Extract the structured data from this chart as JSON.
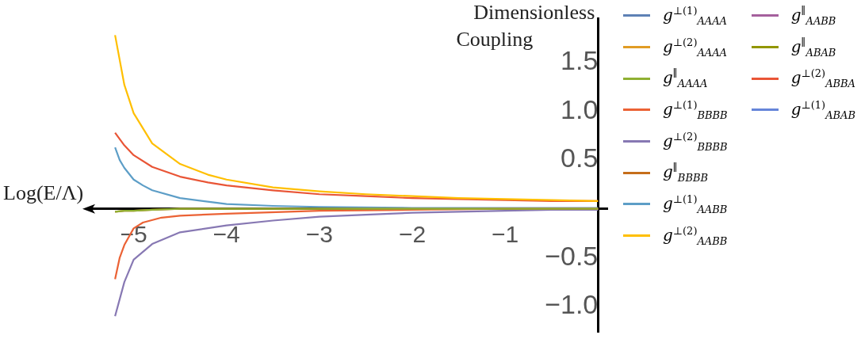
{
  "chart_data": {
    "type": "line",
    "xlabel": "Log(E/Λ)",
    "ylabel": "Dimensionless Coupling",
    "xlim": [
      -5.5,
      0.1
    ],
    "ylim": [
      -1.26,
      1.95
    ],
    "xticks": [
      -5,
      -4,
      -3,
      -2,
      -1
    ],
    "yticks": [
      {
        "value": -1,
        "label": "−1.0"
      },
      -0.5,
      0.5,
      {
        "value": 1,
        "label": "1.0"
      },
      1.5
    ],
    "grid": false,
    "legend": "right",
    "marker": "none",
    "line_style": "solid",
    "series": [
      {
        "name": "g$^{⊥(1)}$$_{AAAA}$",
        "color": "#5e81b5"
      },
      {
        "name": "g$^{⊥(2)}$$_{AAAA}$",
        "color": "#e19c24"
      },
      {
        "name": "g$^{∥}$$_{AAAA}$",
        "color": "#8fb032",
        "x": [
          -5.2,
          -5.1,
          -5,
          -4.8,
          -4.5,
          0
        ],
        "values": [
          -0.03,
          -0.02,
          -0.02,
          -0.01,
          0,
          0
        ]
      },
      {
        "name": "g$^{⊥(1)}$$_{BBBB}$",
        "color": "#eb6235",
        "x": [
          -5.2,
          -5.15,
          -5.1,
          -5,
          -4.9,
          -4.7,
          -4.5,
          -4,
          -3,
          -2,
          -1,
          0
        ],
        "values": [
          -0.72,
          -0.5,
          -0.37,
          -0.2,
          -0.14,
          -0.09,
          -0.07,
          -0.05,
          -0.02,
          -0.01,
          0,
          0
        ]
      },
      {
        "name": "g$^{⊥(2)}$$_{BBBB}$",
        "color": "#8778b3",
        "x": [
          -5.2,
          -5.1,
          -5,
          -4.8,
          -4.5,
          -4,
          -3.5,
          -3,
          -2.5,
          -2,
          -1.5,
          -1,
          -0.5,
          0
        ],
        "values": [
          -1.1,
          -0.75,
          -0.52,
          -0.36,
          -0.24,
          -0.17,
          -0.12,
          -0.08,
          -0.06,
          -0.04,
          -0.03,
          -0.02,
          -0.01,
          -0.01
        ]
      },
      {
        "name": "g$^{∥}$$_{BBBB}$",
        "color": "#c56e1a",
        "x": [
          -5.2,
          -5.1,
          -5,
          -4.8,
          -4.5,
          0
        ],
        "values": [
          -0.03,
          -0.02,
          -0.02,
          -0.01,
          0,
          0
        ]
      },
      {
        "name": "g$^{⊥(1)}$$_{AABB}$",
        "color": "#5d9ec7",
        "x": [
          -5.2,
          -5.15,
          -5.1,
          -5,
          -4.9,
          -4.8,
          -4.5,
          -4,
          -3.5,
          -3,
          -2,
          -1,
          0
        ],
        "values": [
          0.63,
          0.5,
          0.42,
          0.3,
          0.24,
          0.19,
          0.11,
          0.05,
          0.03,
          0.02,
          0.01,
          0.01,
          0.01
        ]
      },
      {
        "name": "g$^{⊥(2)}$$_{AABB}$",
        "color": "#ffbf00",
        "x": [
          -5.2,
          -5.1,
          -5,
          -4.8,
          -4.5,
          -4.2,
          -4,
          -3.5,
          -3,
          -2.5,
          -2,
          -1.5,
          -1,
          -0.5,
          0
        ],
        "values": [
          1.78,
          1.27,
          0.98,
          0.67,
          0.46,
          0.35,
          0.3,
          0.22,
          0.18,
          0.15,
          0.13,
          0.11,
          0.1,
          0.09,
          0.08
        ]
      },
      {
        "name": "g$^{∥}$$_{AABB}$",
        "color": "#a5609d"
      },
      {
        "name": "g$^{∥}$$_{ABAB}$",
        "color": "#929600"
      },
      {
        "name": "g$^{⊥(2)}$$_{ABBA}$",
        "color": "#e95536",
        "x": [
          -5.2,
          -5.1,
          -5,
          -4.8,
          -4.5,
          -4.2,
          -4,
          -3.5,
          -3,
          -2.5,
          -2,
          -1.5,
          -1,
          -0.5,
          0
        ],
        "values": [
          0.78,
          0.65,
          0.55,
          0.43,
          0.33,
          0.27,
          0.24,
          0.19,
          0.15,
          0.13,
          0.11,
          0.1,
          0.09,
          0.08,
          0.08
        ]
      },
      {
        "name": "g$^{⊥(1)}$$_{ABAB}$",
        "color": "#6685d9"
      }
    ]
  }
}
